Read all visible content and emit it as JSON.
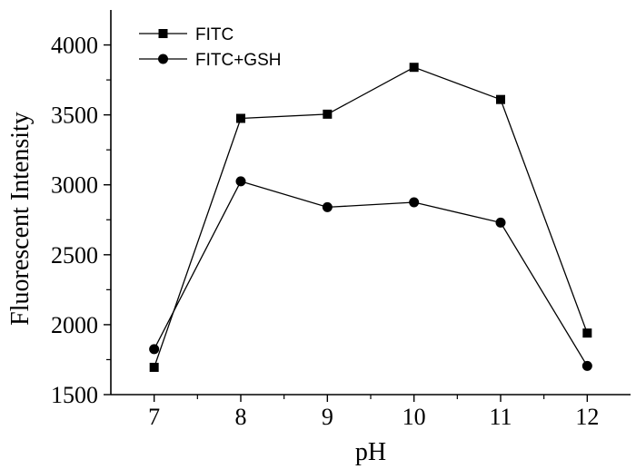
{
  "chart_data": {
    "type": "line",
    "xlabel": "pH",
    "ylabel": "Fluorescent Intensity",
    "x": [
      7,
      8,
      9,
      10,
      11,
      12
    ],
    "xlim": [
      6.5,
      12.5
    ],
    "ylim": [
      1500,
      4250
    ],
    "xticks": [
      7,
      8,
      9,
      10,
      11,
      12
    ],
    "yticks": [
      1500,
      2000,
      2500,
      3000,
      3500,
      4000
    ],
    "grid": false,
    "legend_position": "top-left",
    "series": [
      {
        "name": "FITC",
        "marker": "square",
        "color": "#000000",
        "values": [
          1695,
          3475,
          3505,
          3840,
          3610,
          1940
        ]
      },
      {
        "name": "FITC+GSH",
        "marker": "circle",
        "color": "#000000",
        "values": [
          1825,
          3025,
          2840,
          2875,
          2730,
          1705
        ]
      }
    ]
  }
}
